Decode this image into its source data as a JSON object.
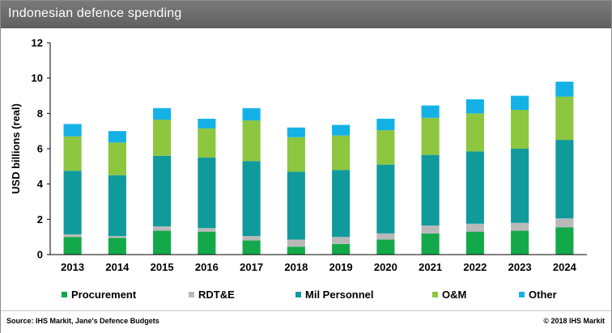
{
  "header": {
    "title": "Indonesian defence spending"
  },
  "footer": {
    "source": "Source: IHS Markit, Jane's Defence Budgets",
    "copyright": "© 2018 IHS Markit"
  },
  "colors": {
    "Procurement": "#13a94a",
    "RDT&E": "#b9b9b9",
    "Mil Personnel": "#119a9c",
    "O&M": "#8dc63f",
    "Other": "#14b1e7"
  },
  "chart_data": {
    "type": "bar",
    "stacked": true,
    "title": "Indonesian defence spending",
    "xlabel": "",
    "ylabel": "USD billions (real)",
    "ylim": [
      0,
      12
    ],
    "yticks": [
      0,
      2,
      4,
      6,
      8,
      10,
      12
    ],
    "grid": false,
    "legend_position": "bottom",
    "categories": [
      "2013",
      "2014",
      "2015",
      "2016",
      "2017",
      "2018",
      "2019",
      "2020",
      "2021",
      "2022",
      "2023",
      "2024"
    ],
    "series": [
      {
        "name": "Procurement",
        "values": [
          1.0,
          0.95,
          1.35,
          1.3,
          0.8,
          0.45,
          0.6,
          0.85,
          1.2,
          1.3,
          1.35,
          1.55
        ]
      },
      {
        "name": "RDT&E",
        "values": [
          0.15,
          0.1,
          0.25,
          0.2,
          0.25,
          0.4,
          0.4,
          0.35,
          0.45,
          0.45,
          0.45,
          0.5
        ]
      },
      {
        "name": "Mil Personnel",
        "values": [
          3.6,
          3.45,
          4.0,
          4.0,
          4.25,
          3.85,
          3.8,
          3.9,
          4.0,
          4.1,
          4.2,
          4.45
        ]
      },
      {
        "name": "O&M",
        "values": [
          1.95,
          1.85,
          2.05,
          1.65,
          2.3,
          1.95,
          1.95,
          1.95,
          2.1,
          2.15,
          2.2,
          2.45
        ]
      },
      {
        "name": "Other",
        "values": [
          0.7,
          0.65,
          0.65,
          0.55,
          0.7,
          0.55,
          0.6,
          0.65,
          0.7,
          0.8,
          0.8,
          0.85
        ]
      }
    ]
  }
}
